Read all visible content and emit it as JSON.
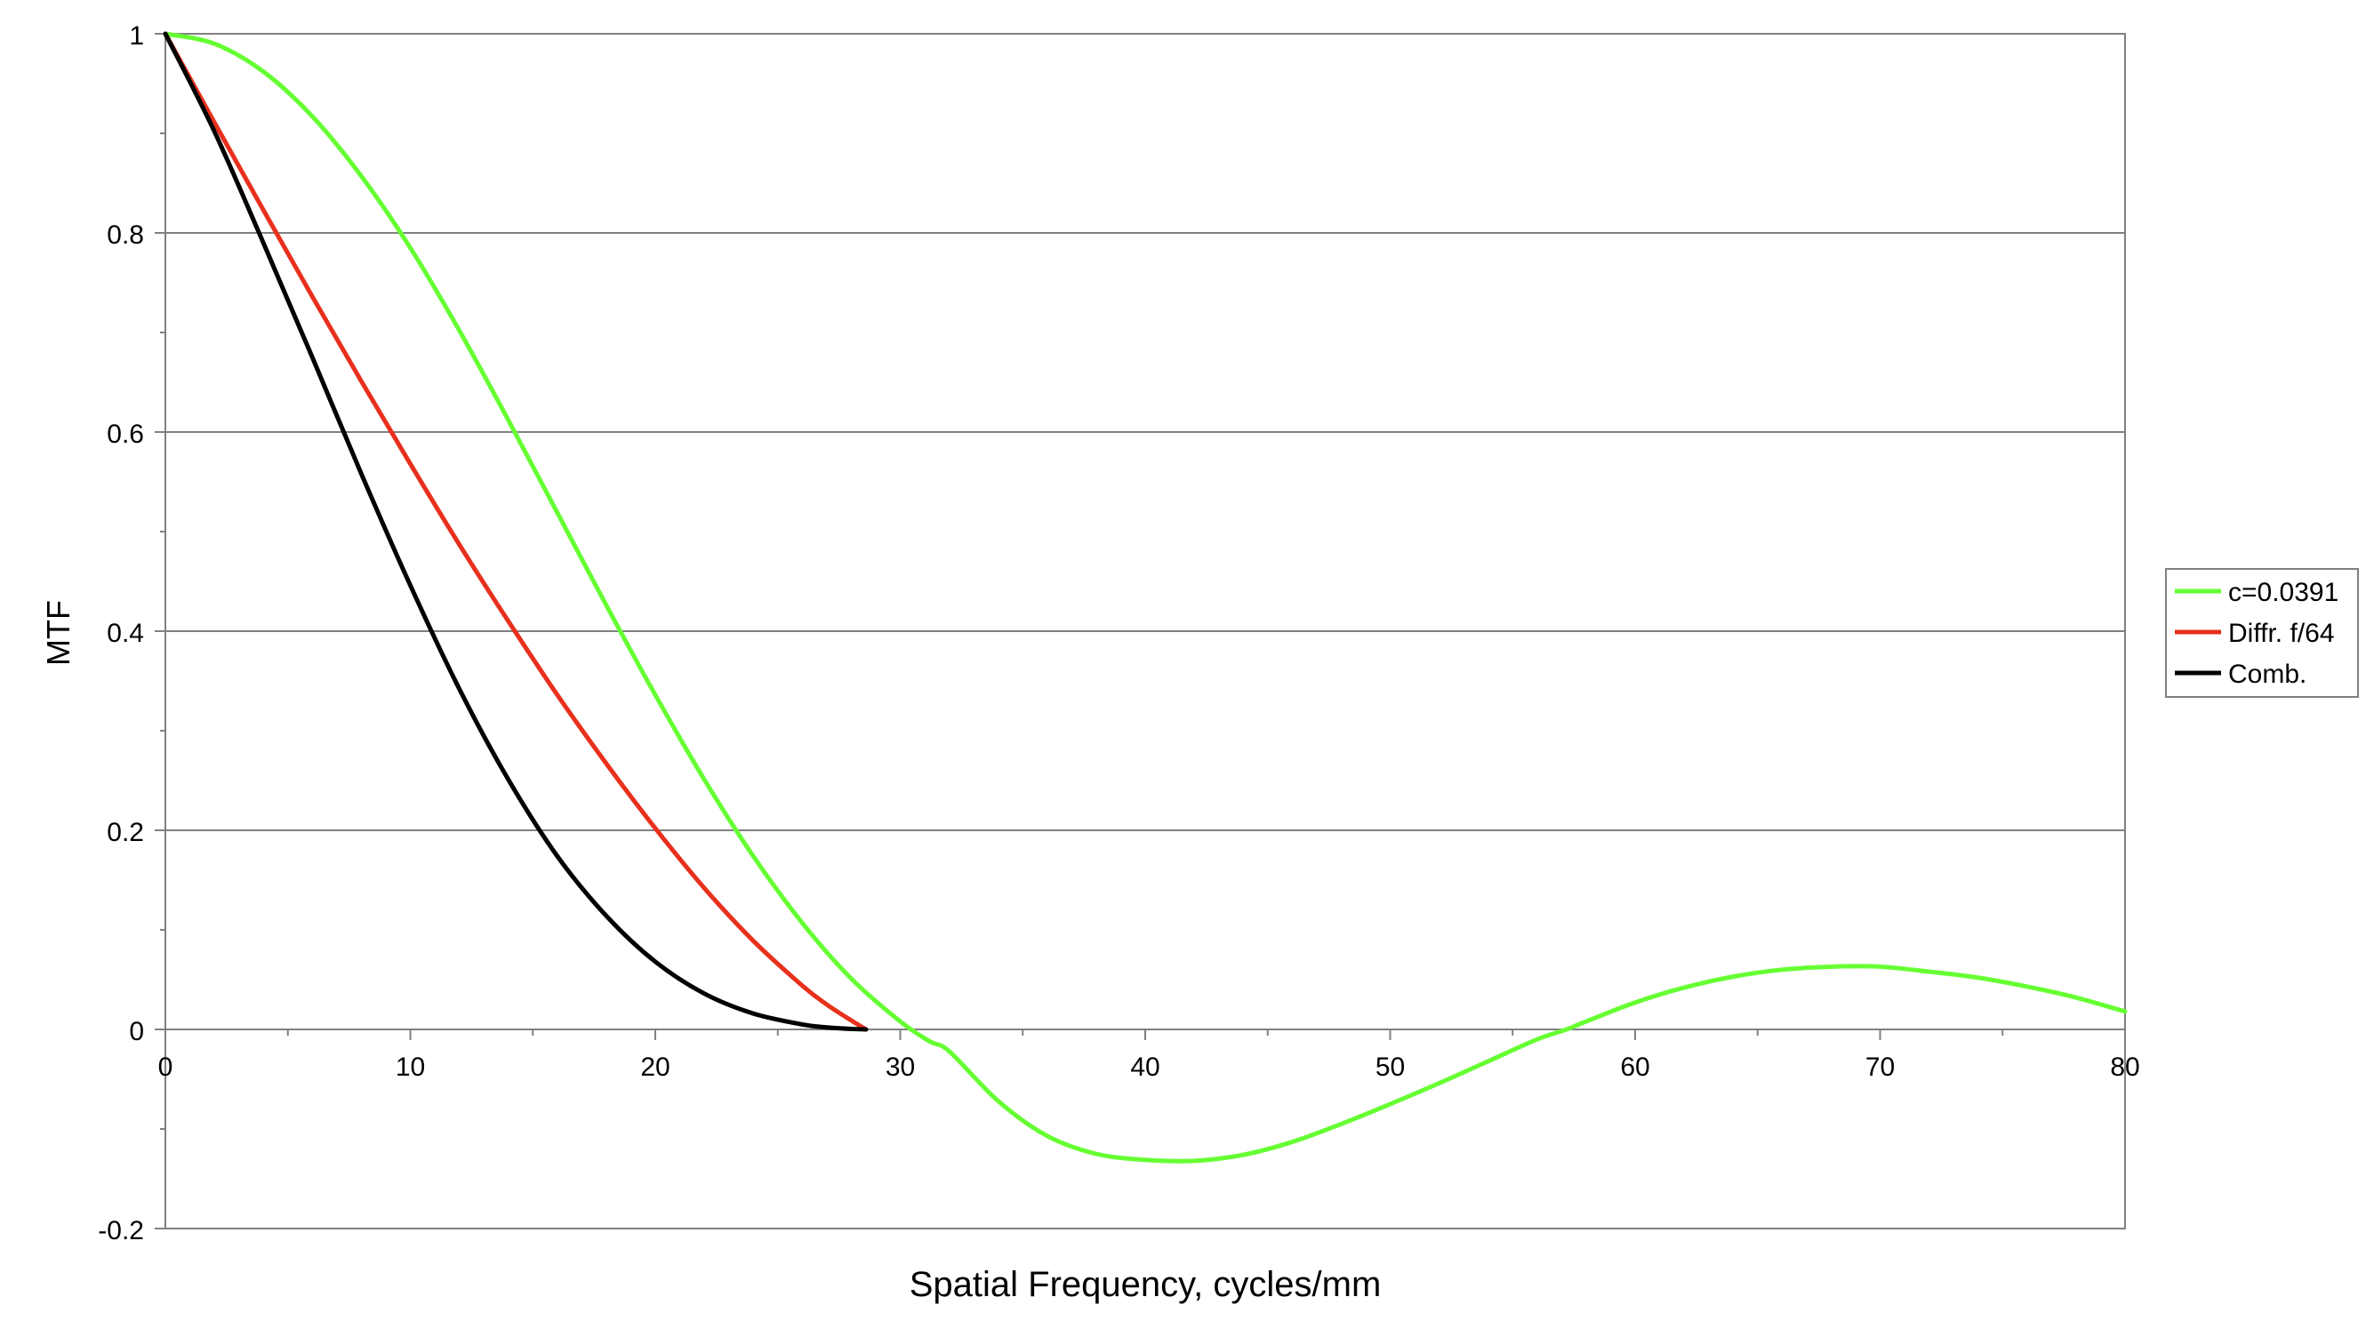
{
  "chart_data": {
    "type": "line",
    "xlabel": "Spatial Frequency, cycles/mm",
    "ylabel": "MTF",
    "xlim": [
      0,
      80
    ],
    "ylim": [
      -0.2,
      1
    ],
    "xticks": [
      0,
      10,
      20,
      30,
      40,
      50,
      60,
      70,
      80
    ],
    "xtick_labels": [
      "0",
      "10",
      "20",
      "30",
      "40",
      "50",
      "60",
      "70",
      "80"
    ],
    "yticks": [
      -0.2,
      0,
      0.2,
      0.4,
      0.6,
      0.8,
      1
    ],
    "ytick_labels": [
      "-0.2",
      "0",
      "0.2",
      "0.4",
      "0.6",
      "0.8",
      "1"
    ],
    "grid": "horizontal",
    "legend_position": "right",
    "series": [
      {
        "name": "c=0.0391",
        "color": "#66ff33",
        "x": [
          0,
          2,
          4,
          6,
          8,
          10,
          12,
          14,
          16,
          18,
          20,
          22,
          24,
          26,
          28,
          30,
          31.2,
          32,
          34,
          36,
          38,
          40,
          42,
          44,
          46,
          48,
          50,
          52,
          54,
          56,
          57.2,
          58,
          60,
          62,
          64,
          66,
          68,
          70,
          72,
          74,
          76,
          78,
          80
        ],
        "values": [
          1.0,
          0.99,
          0.962,
          0.917,
          0.857,
          0.785,
          0.702,
          0.612,
          0.519,
          0.426,
          0.336,
          0.251,
          0.174,
          0.107,
          0.051,
          0.008,
          -0.012,
          -0.022,
          -0.072,
          -0.107,
          -0.125,
          -0.131,
          -0.132,
          -0.126,
          -0.113,
          -0.095,
          -0.075,
          -0.054,
          -0.032,
          -0.01,
          0.0,
          0.008,
          0.027,
          0.042,
          0.053,
          0.06,
          0.063,
          0.063,
          0.058,
          0.052,
          0.043,
          0.032,
          0.018
        ]
      },
      {
        "name": "Diffr. f/64",
        "color": "#e8301c",
        "x": [
          0,
          2,
          4,
          6,
          8,
          10,
          12,
          14,
          16,
          18,
          20,
          22,
          24,
          26,
          27,
          28,
          28.6
        ],
        "values": [
          1.0,
          0.911,
          0.823,
          0.736,
          0.651,
          0.568,
          0.487,
          0.41,
          0.336,
          0.267,
          0.202,
          0.142,
          0.089,
          0.044,
          0.025,
          0.009,
          0.0
        ]
      },
      {
        "name": "Comb.",
        "color": "#000000",
        "x": [
          0,
          2,
          4,
          6,
          8,
          10,
          12,
          14,
          16,
          18,
          20,
          22,
          24,
          26,
          27,
          28,
          28.6
        ],
        "values": [
          1.0,
          0.902,
          0.79,
          0.675,
          0.558,
          0.446,
          0.342,
          0.251,
          0.174,
          0.114,
          0.068,
          0.036,
          0.016,
          0.005,
          0.002,
          0.0005,
          0.0
        ]
      }
    ]
  }
}
